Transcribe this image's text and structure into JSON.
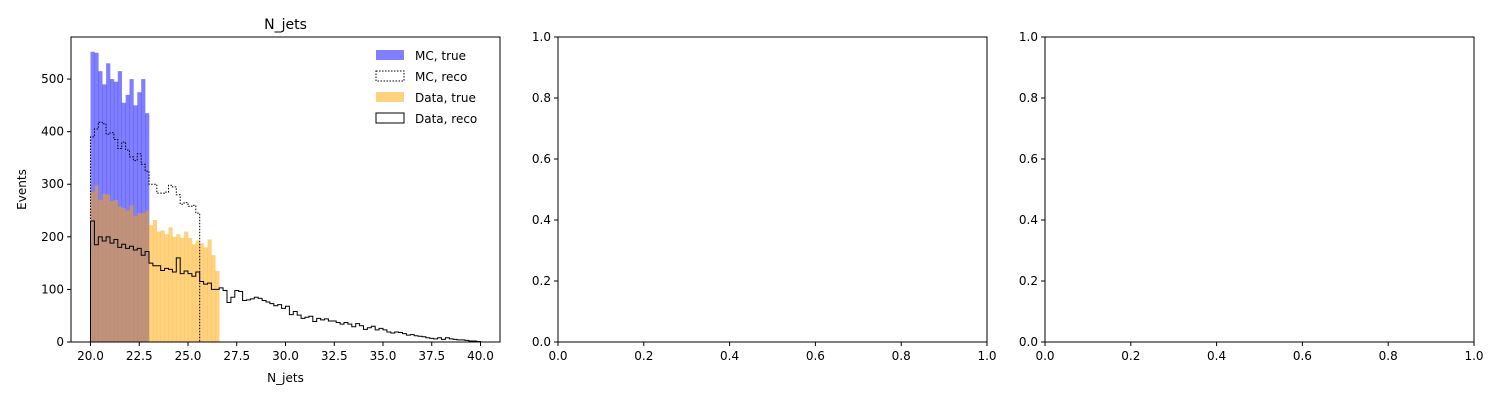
{
  "chart_data": [
    {
      "type": "histogram",
      "title": "N_jets",
      "xlabel": "N_jets",
      "ylabel": "Events",
      "xlim": [
        19.0,
        41.0
      ],
      "ylim": [
        0,
        580
      ],
      "xticks": [
        "20.0",
        "22.5",
        "25.0",
        "27.5",
        "30.0",
        "32.5",
        "35.0",
        "37.5",
        "40.0"
      ],
      "yticks": [
        "0",
        "100",
        "200",
        "300",
        "400",
        "500"
      ],
      "legend_position": "top-right",
      "grid": false,
      "bin_width": 0.2,
      "bin_start": 20.0,
      "series": [
        {
          "name": "MC, true",
          "style": "filled",
          "color": "#0000ff",
          "opacity": 0.5,
          "values": [
            552,
            550,
            515,
            490,
            530,
            500,
            495,
            515,
            455,
            470,
            500,
            450,
            475,
            500,
            435
          ]
        },
        {
          "name": "MC, reco",
          "style": "step-dotted",
          "color": "#000000",
          "values": [
            390,
            405,
            418,
            415,
            395,
            398,
            385,
            368,
            380,
            365,
            352,
            345,
            358,
            338,
            325,
            300,
            300,
            283,
            283,
            285,
            298,
            295,
            280,
            262,
            265,
            258,
            260,
            245
          ]
        },
        {
          "name": "Data, true",
          "style": "filled",
          "color": "#ffa500",
          "opacity": 0.5,
          "values": [
            285,
            298,
            270,
            282,
            280,
            268,
            270,
            258,
            255,
            250,
            260,
            240,
            245,
            245,
            250,
            222,
            232,
            210,
            212,
            205,
            218,
            200,
            205,
            198,
            210,
            198,
            186,
            193,
            188,
            180,
            195,
            165,
            135
          ]
        },
        {
          "name": "Data, reco",
          "style": "step-solid",
          "color": "#000000",
          "values": [
            230,
            185,
            200,
            192,
            200,
            188,
            195,
            180,
            186,
            178,
            182,
            175,
            178,
            165,
            172,
            150,
            145,
            145,
            136,
            140,
            138,
            133,
            160,
            130,
            135,
            130,
            125,
            133,
            115,
            110,
            112,
            100,
            100,
            103,
            98,
            75,
            85,
            98,
            96,
            79,
            80,
            82,
            85,
            83,
            79,
            76,
            73,
            69,
            71,
            64,
            68,
            52,
            58,
            51,
            45,
            47,
            49,
            39,
            45,
            42,
            44,
            40,
            40,
            37,
            34,
            37,
            34,
            29,
            35,
            31,
            24,
            27,
            30,
            23,
            26,
            23,
            19,
            17,
            19,
            18,
            16,
            13,
            14,
            12,
            11,
            10,
            8,
            7,
            6,
            8,
            5,
            8,
            6,
            5,
            4,
            4,
            3,
            2,
            2,
            1
          ]
        }
      ]
    },
    {
      "type": "empty",
      "xlim": [
        0,
        1
      ],
      "ylim": [
        0,
        1
      ],
      "xticks": [
        "0.0",
        "0.2",
        "0.4",
        "0.6",
        "0.8",
        "1.0"
      ],
      "yticks": [
        "0.0",
        "0.2",
        "0.4",
        "0.6",
        "0.8",
        "1.0"
      ]
    },
    {
      "type": "empty",
      "xlim": [
        0,
        1
      ],
      "ylim": [
        0,
        1
      ],
      "xticks": [
        "0.0",
        "0.2",
        "0.4",
        "0.6",
        "0.8",
        "1.0"
      ],
      "yticks": [
        "0.0",
        "0.2",
        "0.4",
        "0.6",
        "0.8",
        "1.0"
      ]
    }
  ]
}
